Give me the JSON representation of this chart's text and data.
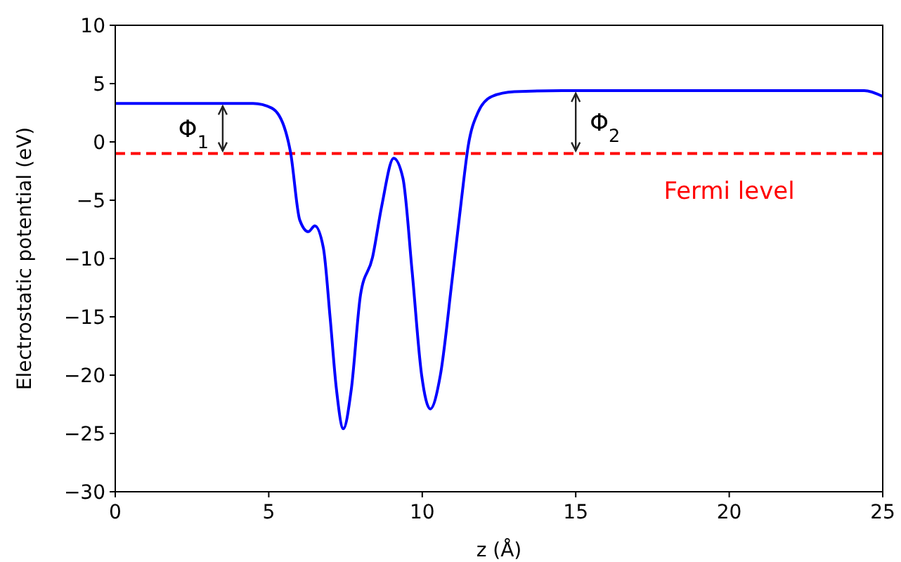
{
  "chart_data": {
    "type": "line",
    "xlabel": "z (Å)",
    "ylabel": "Electrostatic potential (eV)",
    "xlim": [
      0,
      25
    ],
    "ylim": [
      -30,
      10
    ],
    "xticks": [
      0,
      5,
      10,
      15,
      20,
      25
    ],
    "yticks": [
      -30,
      -25,
      -20,
      -15,
      -10,
      -5,
      0,
      5,
      10
    ],
    "grid": false,
    "series": [
      {
        "color": "#0000ff",
        "x": [
          0,
          4.49,
          5.1,
          5.55,
          5.71,
          6.01,
          6.29,
          6.5,
          6.78,
          7.0,
          7.2,
          7.43,
          7.69,
          7.99,
          8.38,
          8.68,
          9.07,
          9.37,
          9.67,
          9.98,
          10.26,
          10.59,
          10.97,
          11.27,
          11.5,
          11.81,
          12.27,
          13.0,
          14.56,
          24.4,
          25
        ],
        "values": [
          3.3,
          3.3,
          2.9,
          0.9,
          -0.9,
          -6.7,
          -7.7,
          -7.2,
          -9.1,
          -15.1,
          -21.1,
          -24.6,
          -21.2,
          -13.1,
          -9.9,
          -5.5,
          -1.4,
          -3.1,
          -11.1,
          -20,
          -22.9,
          -20,
          -11.9,
          -5.1,
          -0.3,
          2.5,
          3.9,
          4.3,
          4.4,
          4.4,
          3.9
        ]
      }
    ],
    "ref_lines": [
      {
        "axis": "y",
        "value": -1,
        "label": "Fermi level",
        "color": "#ff0000",
        "line_style": "dashed"
      }
    ],
    "annotations": [
      {
        "text": "Φ$_{1}$",
        "x": 3.5,
        "y": 3.3
      },
      {
        "text": "Φ$_{2}$",
        "x": 15,
        "y": 4.4
      }
    ]
  }
}
